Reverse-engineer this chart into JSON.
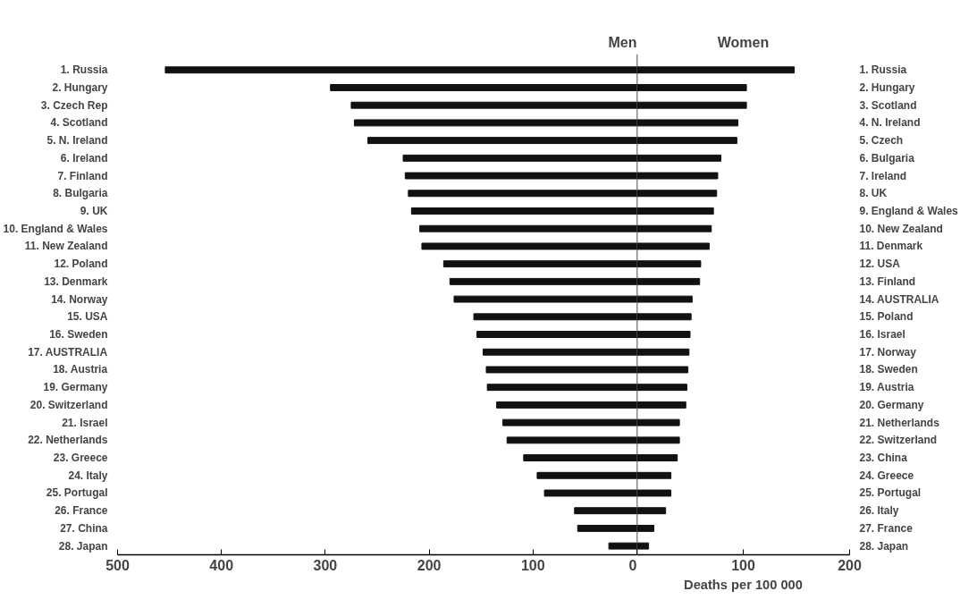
{
  "chart_data": [
    {
      "type": "bar",
      "orientation": "horizontal",
      "title": "Men",
      "color": "#111111",
      "categories": [
        "1. Russia",
        "2. Hungary",
        "3. Czech Rep",
        "4. Scotland",
        "5. N. Ireland",
        "6. Ireland",
        "7. Finland",
        "8. Bulgaria",
        "9. UK",
        "10. England & Wales",
        "11. New Zealand",
        "12. Poland",
        "13. Denmark",
        "14. Norway",
        "15. USA",
        "16. Sweden",
        "17. AUSTRALIA",
        "18. Austria",
        "19. Germany",
        "20. Switzerland",
        "21. Israel",
        "22. Netherlands",
        "23. Greece",
        "24. Italy",
        "25. Portugal",
        "26. France",
        "27. China",
        "28. Japan"
      ],
      "values": [
        454,
        295,
        275,
        272,
        259,
        225,
        223,
        220,
        217,
        209,
        207,
        186,
        180,
        176,
        157,
        154,
        148,
        145,
        144,
        135,
        129,
        125,
        109,
        96,
        89,
        60,
        57,
        27
      ],
      "xlim": [
        500,
        0
      ],
      "xticks": [
        500,
        400,
        300,
        200,
        100,
        0
      ]
    },
    {
      "type": "bar",
      "orientation": "horizontal",
      "title": "Women",
      "color": "#111111",
      "xlabel": "Deaths per 100 000",
      "categories": [
        "1. Russia",
        "2. Hungary",
        "3. Scotland",
        "4. N. Ireland",
        "5. Czech",
        "6. Bulgaria",
        "7. Ireland",
        "8. UK",
        "9. England & Wales",
        "10. New Zealand",
        "11. Denmark",
        "12. USA",
        "13. Finland",
        "14. AUSTRALIA",
        "15. Poland",
        "16. Israel",
        "17. Norway",
        "18. Sweden",
        "19. Austria",
        "20. Germany",
        "21. Netherlands",
        "22. Switzerland",
        "23. China",
        "24. Greece",
        "25. Portugal",
        "26. Italy",
        "27. France",
        "28. Japan"
      ],
      "values": [
        148,
        103,
        103,
        95,
        94,
        79,
        76,
        75,
        72,
        70,
        68,
        60,
        59,
        52,
        51,
        50,
        49,
        48,
        47,
        46,
        40,
        40,
        38,
        32,
        32,
        27,
        16,
        11
      ],
      "xlim": [
        0,
        200
      ],
      "xticks": [
        {
          "value": 0,
          "label": null
        },
        100,
        200
      ]
    }
  ]
}
